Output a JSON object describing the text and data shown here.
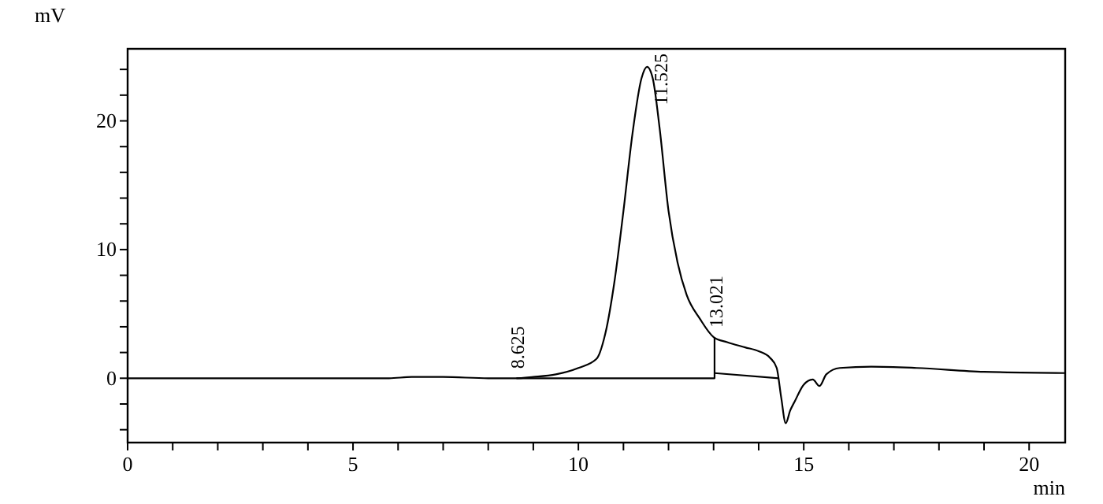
{
  "chart_data": {
    "type": "line",
    "xlabel": "min",
    "ylabel": "mV",
    "xlim": [
      0,
      20.8
    ],
    "ylim": [
      -5,
      25.6
    ],
    "xticks": [
      0,
      {
        "value": 1,
        "label": null
      },
      {
        "value": 2,
        "label": null
      },
      {
        "value": 3,
        "label": null
      },
      {
        "value": 4,
        "label": null
      },
      5,
      {
        "value": 6,
        "label": null
      },
      {
        "value": 7,
        "label": null
      },
      {
        "value": 8,
        "label": null
      },
      {
        "value": 9,
        "label": null
      },
      10,
      {
        "value": 11,
        "label": null
      },
      {
        "value": 12,
        "label": null
      },
      {
        "value": 13,
        "label": null
      },
      {
        "value": 14,
        "label": null
      },
      15,
      {
        "value": 16,
        "label": null
      },
      {
        "value": 17,
        "label": null
      },
      {
        "value": 18,
        "label": null
      },
      {
        "value": 19,
        "label": null
      },
      20
    ],
    "yticks": [
      {
        "value": -4,
        "label": null
      },
      {
        "value": -2,
        "label": null
      },
      0,
      {
        "value": 2,
        "label": null
      },
      {
        "value": 4,
        "label": null
      },
      {
        "value": 6,
        "label": null
      },
      {
        "value": 8,
        "label": null
      },
      10,
      {
        "value": 12,
        "label": null
      },
      {
        "value": 14,
        "label": null
      },
      {
        "value": 16,
        "label": null
      },
      {
        "value": 18,
        "label": null
      },
      20,
      {
        "value": 22,
        "label": null
      },
      {
        "value": 24,
        "label": null
      }
    ],
    "grid": false,
    "marker": "none",
    "line_style": "solid",
    "series": [
      {
        "color": "#000000",
        "x": [
          0,
          1,
          2,
          3,
          4,
          5,
          5.8,
          6.3,
          7,
          8,
          8.6,
          9,
          9.5,
          10,
          10.4,
          10.6,
          10.8,
          11,
          11.2,
          11.4,
          11.525,
          11.65,
          11.8,
          12,
          12.2,
          12.4,
          12.7,
          13,
          13.3,
          13.7,
          14,
          14.25,
          14.4,
          14.5,
          14.6,
          14.7,
          14.8,
          15,
          15.2,
          15.35,
          15.5,
          15.8,
          16.5,
          17.5,
          19,
          20.8
        ],
        "values": [
          0,
          0,
          0,
          0,
          0,
          0,
          0,
          0.1,
          0.1,
          0,
          0,
          0.1,
          0.3,
          0.8,
          1.5,
          3.5,
          7.5,
          13,
          19,
          23.3,
          24.2,
          23.3,
          19.5,
          13,
          9,
          6.5,
          4.6,
          3.2,
          2.8,
          2.4,
          2.1,
          1.6,
          0.8,
          -1.5,
          -3.5,
          -2.5,
          -1.8,
          -0.5,
          -0.1,
          -0.6,
          0.3,
          0.8,
          0.9,
          0.8,
          0.5,
          0.4
        ]
      },
      {
        "color": "#000000",
        "x": [
          8.625,
          13.021,
          13.021
        ],
        "values": [
          0,
          0,
          3.2
        ]
      },
      {
        "color": "#000000",
        "x": [
          13.021,
          14.45
        ],
        "values": [
          0.4,
          0
        ]
      }
    ],
    "annotations": [
      {
        "text": "8.625",
        "x": 8.625,
        "y": 0
      },
      {
        "text": "11.525",
        "x": 11.525,
        "y": 24.2
      },
      {
        "text": "13.021",
        "x": 13.021,
        "y": 3.2
      }
    ]
  }
}
